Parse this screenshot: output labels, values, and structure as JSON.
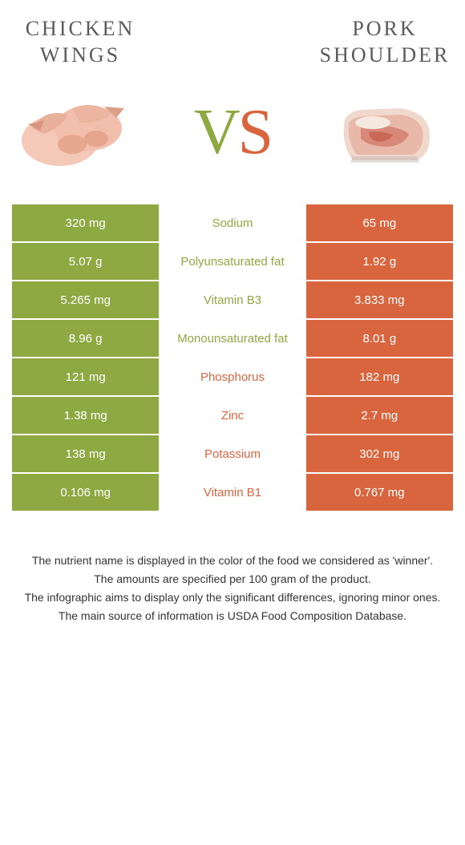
{
  "colors": {
    "green": "#8fa942",
    "orange": "#d9653f",
    "text": "#5a5a5a"
  },
  "left_title": "CHICKEN WINGS",
  "right_title": "PORK SHOULDER",
  "vs_v": "V",
  "vs_s": "S",
  "rows": [
    {
      "left": "320 mg",
      "mid": "Sodium",
      "right": "65 mg",
      "winner": "left"
    },
    {
      "left": "5.07 g",
      "mid": "Polyunsaturated fat",
      "right": "1.92 g",
      "winner": "left"
    },
    {
      "left": "5.265 mg",
      "mid": "Vitamin B3",
      "right": "3.833 mg",
      "winner": "left"
    },
    {
      "left": "8.96 g",
      "mid": "Monounsaturated fat",
      "right": "8.01 g",
      "winner": "left"
    },
    {
      "left": "121 mg",
      "mid": "Phosphorus",
      "right": "182 mg",
      "winner": "right"
    },
    {
      "left": "1.38 mg",
      "mid": "Zinc",
      "right": "2.7 mg",
      "winner": "right"
    },
    {
      "left": "138 mg",
      "mid": "Potassium",
      "right": "302 mg",
      "winner": "right"
    },
    {
      "left": "0.106 mg",
      "mid": "Vitamin B1",
      "right": "0.767 mg",
      "winner": "right"
    }
  ],
  "footer": [
    "The nutrient name is displayed in the color of the food we considered as 'winner'.",
    "The amounts are specified per 100 gram of the product.",
    "The infographic aims to display only the significant differences, ignoring minor ones.",
    "The main source of information is USDA Food Composition Database."
  ]
}
